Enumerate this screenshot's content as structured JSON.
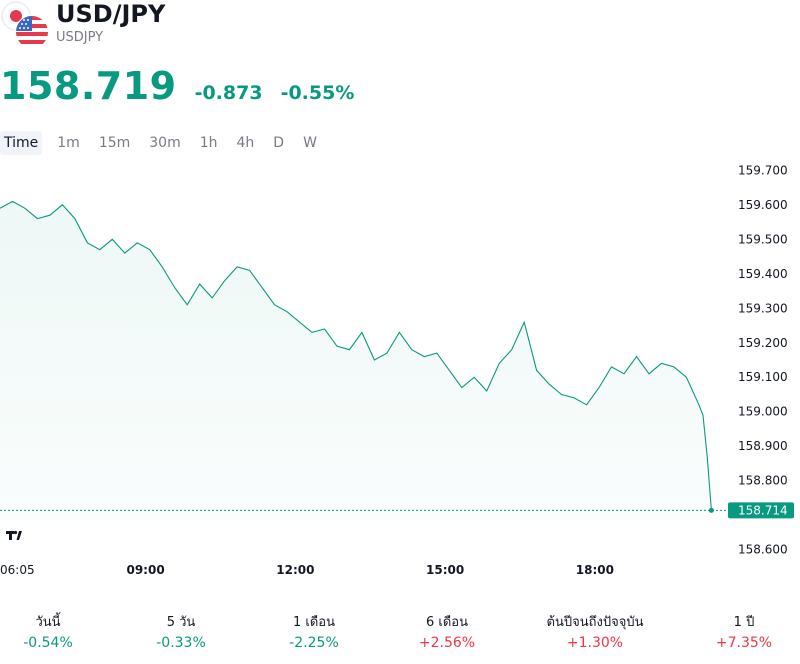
{
  "header": {
    "title": "USD/JPY",
    "symbol": "USDJPY",
    "icons": [
      "japan-flag-icon",
      "us-flag-icon"
    ]
  },
  "quote": {
    "price": "158.719",
    "change": "-0.873",
    "change_percent": "-0.55%"
  },
  "intervals": [
    "Time",
    "1m",
    "15m",
    "30m",
    "1h",
    "4h",
    "D",
    "W"
  ],
  "colors": {
    "line": "#089981",
    "positive": "#f23645",
    "negative": "#089981",
    "text": "#131722",
    "muted": "#787b86"
  },
  "chart_data": {
    "type": "area",
    "y_axis_ticks": [
      "159.700",
      "159.600",
      "159.500",
      "159.400",
      "159.300",
      "159.200",
      "159.100",
      "159.000",
      "158.900",
      "158.800",
      "158.600"
    ],
    "x_axis_ticks": [
      "06:05",
      "09:00",
      "12:00",
      "15:00",
      "18:00"
    ],
    "last_value_label": "158.714",
    "last_value": 158.714,
    "ylim": [
      158.57,
      159.73
    ],
    "xlim": [
      "06:05",
      "20:40"
    ],
    "grid": false,
    "series": [
      {
        "x": [
          "06:05",
          "06:20",
          "06:35",
          "06:50",
          "07:05",
          "07:20",
          "07:35",
          "07:50",
          "08:05",
          "08:20",
          "08:35",
          "08:50",
          "09:05",
          "09:20",
          "09:35",
          "09:50",
          "10:05",
          "10:20",
          "10:35",
          "10:50",
          "11:05",
          "11:20",
          "11:35",
          "11:50",
          "12:05",
          "12:20",
          "12:35",
          "12:50",
          "13:05",
          "13:20",
          "13:35",
          "13:50",
          "14:05",
          "14:20",
          "14:35",
          "14:50",
          "15:05",
          "15:20",
          "15:35",
          "15:50",
          "16:05",
          "16:20",
          "16:35",
          "16:50",
          "17:05",
          "17:20",
          "17:35",
          "17:50",
          "18:05",
          "18:20",
          "18:35",
          "18:50",
          "19:05",
          "19:20",
          "19:35",
          "19:50",
          "20:05",
          "20:10",
          "20:15",
          "20:20"
        ],
        "y": [
          159.59,
          159.61,
          159.59,
          159.56,
          159.57,
          159.6,
          159.56,
          159.49,
          159.47,
          159.5,
          159.46,
          159.49,
          159.47,
          159.42,
          159.36,
          159.31,
          159.37,
          159.33,
          159.38,
          159.42,
          159.41,
          159.36,
          159.31,
          159.29,
          159.26,
          159.23,
          159.24,
          159.19,
          159.18,
          159.23,
          159.15,
          159.17,
          159.23,
          159.18,
          159.16,
          159.17,
          159.12,
          159.07,
          159.1,
          159.06,
          159.14,
          159.18,
          159.26,
          159.12,
          159.08,
          159.05,
          159.04,
          159.02,
          159.07,
          159.13,
          159.11,
          159.16,
          159.11,
          159.14,
          159.13,
          159.1,
          159.02,
          158.99,
          158.87,
          158.714
        ]
      }
    ]
  },
  "performance": [
    {
      "label": "วันนี้",
      "value": "-0.54%",
      "dir": "down"
    },
    {
      "label": "5 วัน",
      "value": "-0.33%",
      "dir": "down"
    },
    {
      "label": "1 เดือน",
      "value": "-2.25%",
      "dir": "down"
    },
    {
      "label": "6 เดือน",
      "value": "+2.56%",
      "dir": "up"
    },
    {
      "label": "ต้นปีจนถึงปัจจุบัน",
      "value": "+1.30%",
      "dir": "up"
    },
    {
      "label": "1 ปี",
      "value": "+7.35%",
      "dir": "up"
    }
  ]
}
